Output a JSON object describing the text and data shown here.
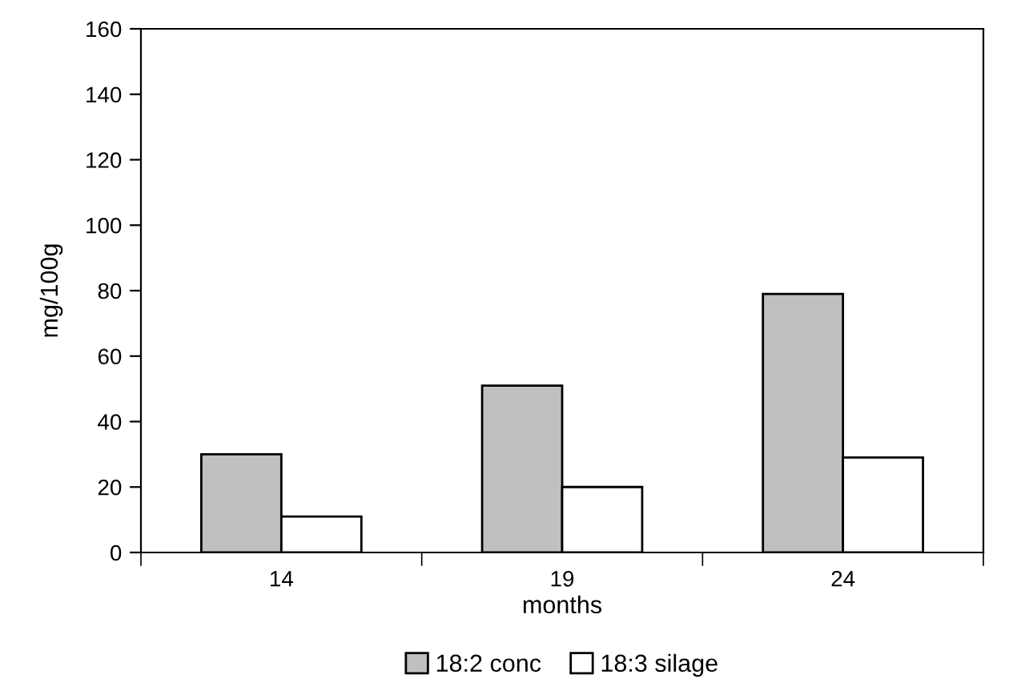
{
  "chart_data": {
    "type": "bar",
    "xlabel": "months",
    "ylabel": "mg/100g",
    "categories": [
      "14",
      "19",
      "24"
    ],
    "series": [
      {
        "name": "18:2 conc",
        "color": "#c0c0c0",
        "values": [
          30,
          51,
          79
        ]
      },
      {
        "name": "18:3 silage",
        "color": "#ffffff",
        "values": [
          11,
          20,
          29
        ]
      }
    ],
    "ylim": [
      0,
      160
    ],
    "yticks": [
      0,
      20,
      40,
      60,
      80,
      100,
      120,
      140,
      160
    ],
    "grid": false,
    "legend": "bottom"
  }
}
